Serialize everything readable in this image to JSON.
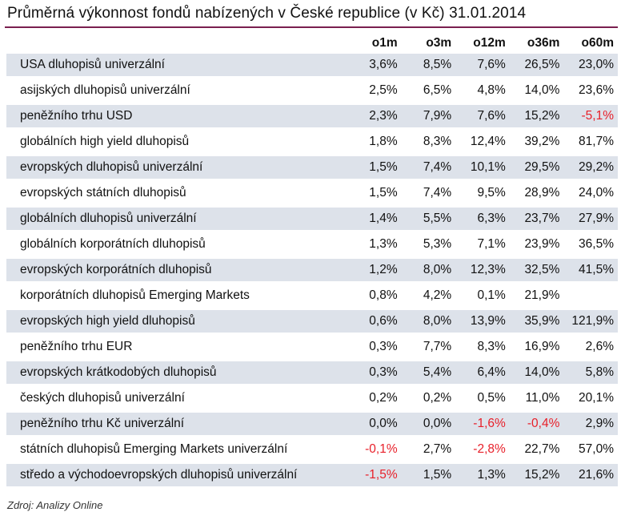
{
  "title": "Průměrná výkonnost fondů nabízených v České republice (v Kč) 31.01.2014",
  "columns": [
    "o1m",
    "o3m",
    "o12m",
    "o36m",
    "o60m"
  ],
  "rows": [
    {
      "name": "USA dluhopisů univerzální",
      "values": [
        "3,6%",
        "8,5%",
        "7,6%",
        "26,5%",
        "23,0%"
      ]
    },
    {
      "name": "asijských dluhopisů univerzální",
      "values": [
        "2,5%",
        "6,5%",
        "4,8%",
        "14,0%",
        "23,6%"
      ]
    },
    {
      "name": "peněžního trhu USD",
      "values": [
        "2,3%",
        "7,9%",
        "7,6%",
        "15,2%",
        "-5,1%"
      ]
    },
    {
      "name": "globálních high yield dluhopisů",
      "values": [
        "1,8%",
        "8,3%",
        "12,4%",
        "39,2%",
        "81,7%"
      ]
    },
    {
      "name": "evropských dluhopisů univerzální",
      "values": [
        "1,5%",
        "7,4%",
        "10,1%",
        "29,5%",
        "29,2%"
      ]
    },
    {
      "name": "evropských státních dluhopisů",
      "values": [
        "1,5%",
        "7,4%",
        "9,5%",
        "28,9%",
        "24,0%"
      ]
    },
    {
      "name": "globálních dluhopisů univerzální",
      "values": [
        "1,4%",
        "5,5%",
        "6,3%",
        "23,7%",
        "27,9%"
      ]
    },
    {
      "name": "globálních korporátních dluhopisů",
      "values": [
        "1,3%",
        "5,3%",
        "7,1%",
        "23,9%",
        "36,5%"
      ]
    },
    {
      "name": "evropských korporátních dluhopisů",
      "values": [
        "1,2%",
        "8,0%",
        "12,3%",
        "32,5%",
        "41,5%"
      ]
    },
    {
      "name": "korporátních dluhopisů Emerging Markets",
      "values": [
        "0,8%",
        "4,2%",
        "0,1%",
        "21,9%",
        ""
      ]
    },
    {
      "name": "evropských high yield dluhopisů",
      "values": [
        "0,6%",
        "8,0%",
        "13,9%",
        "35,9%",
        "121,9%"
      ]
    },
    {
      "name": "peněžního trhu EUR",
      "values": [
        "0,3%",
        "7,7%",
        "8,3%",
        "16,9%",
        "2,6%"
      ]
    },
    {
      "name": "evropských krátkodobých dluhopisů",
      "values": [
        "0,3%",
        "5,4%",
        "6,4%",
        "14,0%",
        "5,8%"
      ]
    },
    {
      "name": "českých dluhopisů univerzální",
      "values": [
        "0,2%",
        "0,2%",
        "0,5%",
        "11,0%",
        "20,1%"
      ]
    },
    {
      "name": "peněžního trhu Kč univerzální",
      "values": [
        "0,0%",
        "0,0%",
        "-1,6%",
        "-0,4%",
        "2,9%"
      ]
    },
    {
      "name": "státních dluhopisů Emerging Markets univerzální",
      "values": [
        "-0,1%",
        "2,7%",
        "-2,8%",
        "22,7%",
        "57,0%"
      ]
    },
    {
      "name": "středo a východoevropských dluhopisů univerzální",
      "values": [
        "-1,5%",
        "1,5%",
        "1,3%",
        "15,2%",
        "21,6%"
      ]
    }
  ],
  "source": "Zdroj: Analizy Online",
  "colors": {
    "accent_rule": "#7a1f4f",
    "row_shade": "#dde2ea",
    "negative": "#e8202a"
  }
}
